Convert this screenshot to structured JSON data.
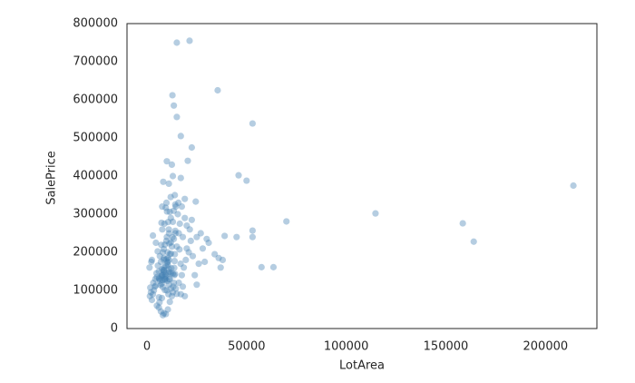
{
  "chart_data": {
    "type": "scatter",
    "x_label": "LotArea",
    "y_label": "SalePrice",
    "color": "#4682b4",
    "alpha": 0.4,
    "grid": false,
    "xlim": [
      -10000,
      225800
    ],
    "ylim": [
      0,
      800000
    ],
    "xticks": [
      0,
      50000,
      100000,
      150000,
      200000
    ],
    "yticks": [
      0,
      100000,
      200000,
      300000,
      400000,
      500000,
      600000,
      700000,
      800000
    ],
    "x": [
      8450,
      9600,
      11250,
      9550,
      14260,
      14115,
      10084,
      10382,
      6120,
      7420,
      11200,
      11924,
      12968,
      10652,
      10920,
      6120,
      11241,
      10791,
      13695,
      7560,
      14215,
      7449,
      9742,
      4224,
      8246,
      14230,
      7200,
      11478,
      16321,
      6324,
      8500,
      8544,
      11049,
      10552,
      7313,
      13418,
      10859,
      8532,
      7922,
      6040,
      8658,
      16905,
      9180,
      9200,
      7945,
      7658,
      12822,
      11096,
      4456,
      7742,
      13869,
      6879,
      13250,
      8197,
      9135,
      8529,
      10200,
      12090,
      10000,
      10241,
      12240,
      9000,
      5410,
      13680,
      7200,
      9450,
      2500,
      12000,
      7500,
      4500,
      3000,
      11500,
      10500,
      12000,
      1680,
      15000,
      9100,
      9000,
      3500,
      17000,
      18000,
      19000,
      20000,
      16000,
      15500,
      14000,
      13000,
      12500,
      11000,
      9800,
      8800,
      7700,
      6500,
      5500,
      4800,
      3200,
      2000,
      1500,
      1300,
      2200,
      5000,
      6000,
      7000,
      8000,
      9500,
      10500,
      11500,
      12500,
      13500,
      14500,
      16000,
      17500,
      18500,
      19500,
      21000,
      22000,
      23000,
      24000,
      25000,
      26000,
      27000,
      28000,
      30000,
      31000,
      17000,
      18000,
      19000,
      13000,
      14500,
      15800,
      12000,
      11000,
      10000,
      9000,
      8000,
      7000,
      6000,
      5000,
      4000,
      3000,
      2500,
      9500,
      10500,
      11500,
      12500,
      13500,
      8500,
      7500,
      6500,
      10000,
      11000,
      12000,
      13000,
      14000,
      15000,
      16500,
      19000,
      17500,
      21500,
      20000,
      22500,
      25000,
      29000,
      34000,
      36000,
      37000,
      38000,
      15000,
      21400,
      35500,
      53000,
      46000,
      50000,
      70000,
      114700,
      158500,
      164000,
      214000,
      57500,
      63500,
      53000,
      53000,
      45000,
      39000,
      24500,
      20500,
      22500,
      17000,
      12800,
      13500,
      15000
    ],
    "values": [
      208500,
      181500,
      223500,
      140000,
      250000,
      143000,
      307000,
      200000,
      129900,
      118000,
      129500,
      345000,
      144000,
      279500,
      157000,
      132000,
      149000,
      90000,
      159000,
      139000,
      325300,
      139400,
      230000,
      129900,
      154000,
      256300,
      134800,
      306000,
      207500,
      68500,
      40000,
      149350,
      179900,
      165500,
      277500,
      309000,
      145000,
      153000,
      109000,
      82000,
      160000,
      170000,
      144000,
      130250,
      141000,
      319900,
      239686,
      249700,
      113000,
      127000,
      177000,
      114500,
      110000,
      385000,
      130000,
      180500,
      172500,
      196500,
      438780,
      124900,
      158000,
      101000,
      202500,
      140000,
      219500,
      317000,
      180000,
      226000,
      80000,
      225000,
      244000,
      129500,
      185000,
      144900,
      107400,
      91000,
      135750,
      127000,
      100000,
      395000,
      240000,
      290000,
      210000,
      250000,
      300000,
      350000,
      400000,
      430000,
      380000,
      330000,
      275000,
      260000,
      190000,
      165000,
      145000,
      120000,
      95000,
      85000,
      160000,
      175000,
      60000,
      55000,
      45000,
      35000,
      38000,
      50000,
      70000,
      85000,
      120000,
      105000,
      120000,
      140000,
      160000,
      180000,
      200000,
      230000,
      190000,
      140000,
      115000,
      170000,
      250000,
      210000,
      235000,
      225000,
      90000,
      110000,
      85000,
      280000,
      320000,
      330000,
      290000,
      260000,
      240000,
      220000,
      200000,
      175000,
      150000,
      135000,
      110000,
      90000,
      75000,
      165000,
      175000,
      195000,
      215000,
      235000,
      185000,
      155000,
      125000,
      100000,
      115000,
      105000,
      95000,
      195000,
      215000,
      275000,
      340000,
      320000,
      260000,
      270000,
      285000,
      240000,
      175000,
      195000,
      185000,
      160000,
      180000,
      750000,
      755000,
      625000,
      538000,
      402000,
      388000,
      281000,
      302000,
      276000,
      228000,
      375000,
      161000,
      161000,
      257000,
      240000,
      240000,
      243000,
      333000,
      440000,
      475000,
      505000,
      612000,
      585000,
      555000
    ]
  }
}
